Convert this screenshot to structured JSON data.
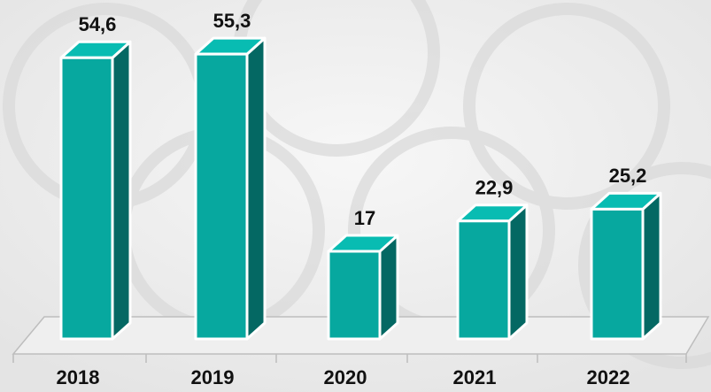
{
  "chart_data": {
    "type": "bar3d",
    "categories": [
      "2018",
      "2019",
      "2020",
      "2021",
      "2022"
    ],
    "values": [
      54.6,
      55.3,
      17,
      22.9,
      25.2
    ],
    "value_labels": [
      "54,6",
      "55,3",
      "17",
      "22,9",
      "25,2"
    ],
    "color": "#07a89f"
  }
}
